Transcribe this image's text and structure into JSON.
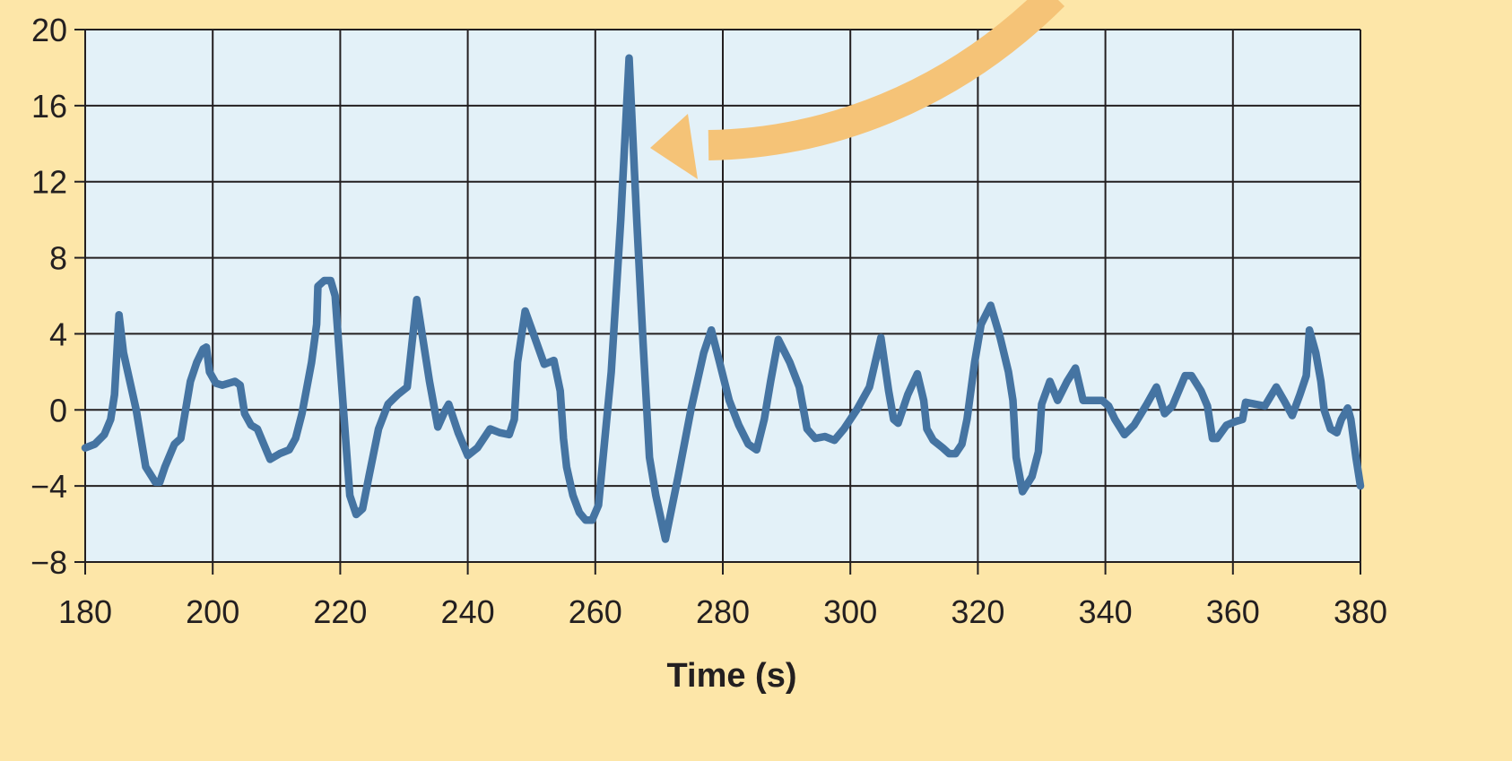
{
  "chart_data": {
    "type": "line",
    "title": "",
    "xlabel": "Time (s)",
    "ylabel": "",
    "xlim": [
      180,
      380
    ],
    "ylim": [
      -8,
      20
    ],
    "x_ticks": [
      180,
      200,
      220,
      240,
      260,
      280,
      300,
      320,
      340,
      360,
      380
    ],
    "y_ticks": [
      -8,
      -4,
      0,
      4,
      8,
      12,
      16,
      20
    ],
    "y_tick_labels": [
      "−8",
      "−4",
      "0",
      "4",
      "8",
      "12",
      "16",
      "20"
    ],
    "grid": true,
    "annotation": "arrow pointing to peak near 265 s",
    "colors": {
      "background": "#fde6a8",
      "plot_area": "#e3f1f8",
      "line": "#4574a2",
      "grid": "#231f20",
      "arrow": "#f5c377"
    },
    "series": [
      {
        "name": "",
        "points": [
          [
            180,
            -2.0
          ],
          [
            181.5,
            -1.8
          ],
          [
            183,
            -1.3
          ],
          [
            184,
            -0.5
          ],
          [
            184.6,
            0.8
          ],
          [
            185.3,
            5.0
          ],
          [
            186,
            3.0
          ],
          [
            188,
            0.0
          ],
          [
            189.5,
            -3.0
          ],
          [
            191,
            -3.8
          ],
          [
            191.7,
            -3.8
          ],
          [
            192.5,
            -3.0
          ],
          [
            194,
            -1.8
          ],
          [
            195,
            -1.5
          ],
          [
            196.5,
            1.5
          ],
          [
            197.5,
            2.5
          ],
          [
            198.5,
            3.2
          ],
          [
            199,
            3.3
          ],
          [
            199.5,
            2.0
          ],
          [
            200.5,
            1.4
          ],
          [
            201.5,
            1.3
          ],
          [
            202.5,
            1.4
          ],
          [
            203.5,
            1.5
          ],
          [
            204.3,
            1.3
          ],
          [
            205,
            -0.2
          ],
          [
            206,
            -0.8
          ],
          [
            207,
            -1.0
          ],
          [
            208,
            -1.8
          ],
          [
            209,
            -2.6
          ],
          [
            210.5,
            -2.3
          ],
          [
            212,
            -2.1
          ],
          [
            213,
            -1.5
          ],
          [
            214,
            -0.2
          ],
          [
            215.5,
            2.5
          ],
          [
            216.3,
            4.5
          ],
          [
            216.5,
            6.5
          ],
          [
            217.5,
            6.8
          ],
          [
            218.5,
            6.8
          ],
          [
            219.2,
            6.0
          ],
          [
            220.5,
            0.0
          ],
          [
            221.5,
            -4.5
          ],
          [
            222.5,
            -5.5
          ],
          [
            223.5,
            -5.2
          ],
          [
            224.5,
            -3.5
          ],
          [
            226,
            -1.0
          ],
          [
            227.5,
            0.3
          ],
          [
            229,
            0.8
          ],
          [
            230.5,
            1.2
          ],
          [
            232,
            5.8
          ],
          [
            234,
            1.5
          ],
          [
            235.3,
            -0.9
          ],
          [
            236.5,
            0.0
          ],
          [
            237,
            0.3
          ],
          [
            238.5,
            -1.2
          ],
          [
            240,
            -2.4
          ],
          [
            241.5,
            -2.0
          ],
          [
            243.5,
            -1.0
          ],
          [
            245,
            -1.2
          ],
          [
            246.5,
            -1.3
          ],
          [
            247.3,
            -0.5
          ],
          [
            247.8,
            2.5
          ],
          [
            249,
            5.2
          ],
          [
            250.5,
            3.8
          ],
          [
            252,
            2.4
          ],
          [
            253.5,
            2.6
          ],
          [
            254.5,
            1.0
          ],
          [
            255,
            -1.5
          ],
          [
            255.5,
            -3.0
          ],
          [
            256.5,
            -4.5
          ],
          [
            257.5,
            -5.4
          ],
          [
            258.5,
            -5.8
          ],
          [
            259.5,
            -5.8
          ],
          [
            260.5,
            -5.0
          ],
          [
            262.5,
            2.0
          ],
          [
            264,
            10.0
          ],
          [
            265.3,
            18.5
          ],
          [
            266.5,
            10.0
          ],
          [
            267.5,
            3.5
          ],
          [
            268.5,
            -2.5
          ],
          [
            269.5,
            -4.5
          ],
          [
            271,
            -6.8
          ],
          [
            273,
            -3.5
          ],
          [
            275,
            0.0
          ],
          [
            277,
            3.0
          ],
          [
            278.2,
            4.2
          ],
          [
            279.5,
            2.5
          ],
          [
            281,
            0.5
          ],
          [
            282.5,
            -0.8
          ],
          [
            284,
            -1.8
          ],
          [
            285.3,
            -2.1
          ],
          [
            286.5,
            -0.5
          ],
          [
            287.5,
            1.5
          ],
          [
            288.7,
            3.7
          ],
          [
            290.5,
            2.5
          ],
          [
            292,
            1.2
          ],
          [
            293.2,
            -1.0
          ],
          [
            294.5,
            -1.5
          ],
          [
            296,
            -1.4
          ],
          [
            297.5,
            -1.6
          ],
          [
            299,
            -1.0
          ],
          [
            301,
            0.0
          ],
          [
            303,
            1.2
          ],
          [
            304.8,
            3.8
          ],
          [
            306,
            1.0
          ],
          [
            306.8,
            -0.5
          ],
          [
            307.5,
            -0.7
          ],
          [
            309,
            0.8
          ],
          [
            310.5,
            1.9
          ],
          [
            311.5,
            0.5
          ],
          [
            312,
            -1.0
          ],
          [
            313,
            -1.6
          ],
          [
            314.5,
            -2.0
          ],
          [
            315.5,
            -2.3
          ],
          [
            316.5,
            -2.3
          ],
          [
            317.5,
            -1.8
          ],
          [
            318.3,
            -0.5
          ],
          [
            319.5,
            2.5
          ],
          [
            320.5,
            4.5
          ],
          [
            322,
            5.5
          ],
          [
            323.5,
            3.8
          ],
          [
            324.8,
            2.0
          ],
          [
            325.5,
            0.5
          ],
          [
            326,
            -2.5
          ],
          [
            327,
            -4.3
          ],
          [
            328.5,
            -3.5
          ],
          [
            329.5,
            -2.2
          ],
          [
            330,
            0.3
          ],
          [
            331.3,
            1.5
          ],
          [
            332.5,
            0.5
          ],
          [
            334,
            1.5
          ],
          [
            335.3,
            2.2
          ],
          [
            336.5,
            0.5
          ],
          [
            338,
            0.5
          ],
          [
            339.5,
            0.5
          ],
          [
            340.5,
            0.2
          ],
          [
            341.5,
            -0.5
          ],
          [
            343,
            -1.3
          ],
          [
            344.5,
            -0.8
          ],
          [
            346.5,
            0.3
          ],
          [
            348,
            1.2
          ],
          [
            349.3,
            -0.2
          ],
          [
            350.5,
            0.2
          ],
          [
            352.5,
            1.8
          ],
          [
            353.5,
            1.8
          ],
          [
            355,
            1.0
          ],
          [
            356,
            0.2
          ],
          [
            356.8,
            -1.5
          ],
          [
            357.5,
            -1.5
          ],
          [
            359,
            -0.8
          ],
          [
            360.5,
            -0.6
          ],
          [
            361.5,
            -0.5
          ],
          [
            362,
            0.4
          ],
          [
            363.5,
            0.3
          ],
          [
            365,
            0.2
          ],
          [
            366.8,
            1.2
          ],
          [
            368,
            0.5
          ],
          [
            369.3,
            -0.3
          ],
          [
            370.5,
            0.8
          ],
          [
            371.5,
            1.8
          ],
          [
            372,
            4.2
          ],
          [
            373,
            3.0
          ],
          [
            373.8,
            1.5
          ],
          [
            374.3,
            0.0
          ],
          [
            375.3,
            -1.0
          ],
          [
            376.3,
            -1.2
          ],
          [
            377,
            -0.5
          ],
          [
            378,
            0.1
          ],
          [
            378.5,
            -0.5
          ],
          [
            379.3,
            -2.5
          ],
          [
            380,
            -4.0
          ]
        ]
      }
    ]
  }
}
